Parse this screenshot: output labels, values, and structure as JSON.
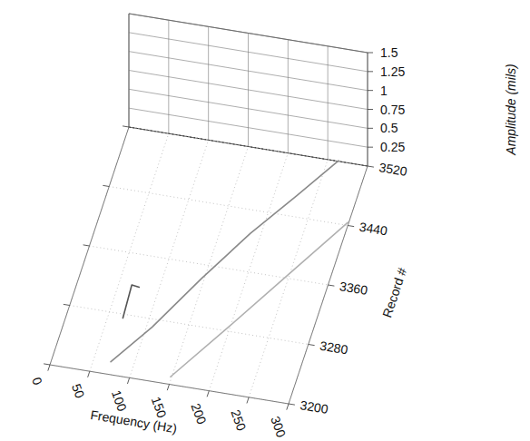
{
  "chart_data": {
    "type": "waterfall",
    "x_label": "Frequency (Hz)",
    "y_label": "Amplitude (mils)",
    "z_label": "Record #",
    "xlim": [
      0,
      300
    ],
    "xticks": [
      0,
      50,
      100,
      150,
      200,
      250,
      300
    ],
    "ylim": [
      0,
      1.5
    ],
    "yticks": [
      0.25,
      0.5,
      0.75,
      1,
      1.25,
      1.5
    ],
    "zlim": [
      3200,
      3520
    ],
    "zticks": [
      3200,
      3280,
      3360,
      3440,
      3520
    ],
    "grid": true,
    "series": [
      {
        "color": "#8a8a8a",
        "x": [
          75,
          110,
          150,
          190,
          230,
          265
        ],
        "records": [
          3205,
          3260,
          3330,
          3400,
          3460,
          3515
        ],
        "values": [
          0.12,
          0.1,
          0.12,
          0.1,
          0.08,
          0.06
        ]
      },
      {
        "color": "#555555",
        "x": [
          70,
          75,
          78
        ],
        "records": [
          3270,
          3290,
          3310
        ],
        "values": [
          0.05,
          0.3,
          0.08
        ]
      },
      {
        "color": "#b0b0b0",
        "x": [
          150,
          200,
          250,
          300
        ],
        "records": [
          3205,
          3280,
          3360,
          3440
        ],
        "values": [
          0.05,
          0.06,
          0.05,
          0.04
        ]
      }
    ]
  }
}
